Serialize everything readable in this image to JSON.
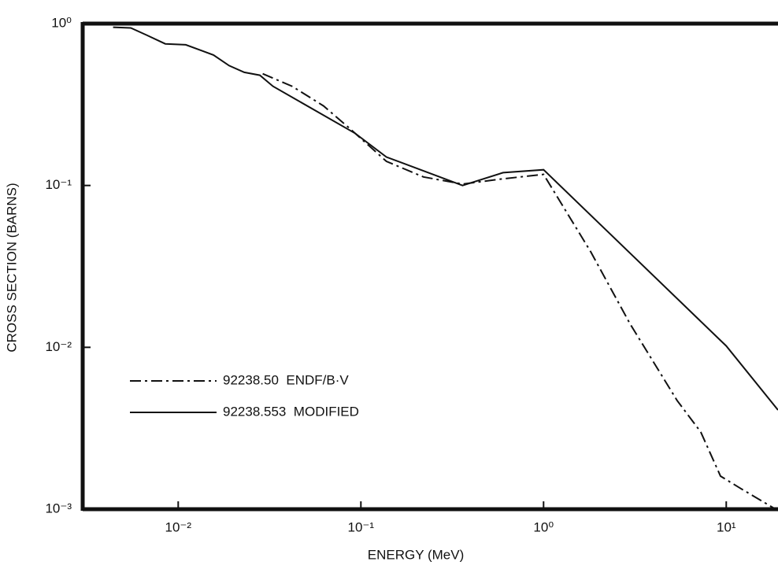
{
  "chart_data": {
    "type": "line",
    "log_x": true,
    "log_y": true,
    "x_label": "ENERGY (MeV)",
    "y_label": "CROSS SECTION (BARNS)",
    "xlim": [
      0.003,
      19.2
    ],
    "ylim": [
      0.001,
      1
    ],
    "xticks": [
      {
        "value": 0.01,
        "label": "10⁻²"
      },
      {
        "value": 0.1,
        "label": "10⁻¹"
      },
      {
        "value": 1,
        "label": "10⁰"
      },
      {
        "value": 10,
        "label": "10¹"
      }
    ],
    "yticks": [
      {
        "value": 0.001,
        "label": "10⁻³"
      },
      {
        "value": 0.01,
        "label": "10⁻²"
      },
      {
        "value": 0.1,
        "label": "10⁻¹"
      },
      {
        "value": 1,
        "label": "10⁰"
      }
    ],
    "legend": "lower left",
    "series": [
      {
        "name": "92238.50  ENDF/B·V",
        "color": "#111111",
        "linestyle": "dashdot",
        "x": [
          0.029,
          0.042,
          0.0625,
          0.085,
          0.138,
          0.22,
          0.36,
          0.6,
          1.0,
          1.81,
          2.97,
          5.38,
          7.25,
          9.3,
          11.9,
          19.2
        ],
        "values": [
          0.49,
          0.41,
          0.31,
          0.23,
          0.141,
          0.113,
          0.102,
          0.11,
          0.117,
          0.039,
          0.014,
          0.0047,
          0.003,
          0.0016,
          0.00135,
          0.00098
        ]
      },
      {
        "name": "92238.553  MODIFIED",
        "color": "#111111",
        "linestyle": "solid",
        "x": [
          0.0044,
          0.0055,
          0.0067,
          0.0085,
          0.011,
          0.0156,
          0.019,
          0.023,
          0.028,
          0.033,
          0.093,
          0.138,
          0.36,
          0.6,
          1.0,
          10,
          19.2
        ],
        "values": [
          0.95,
          0.94,
          0.85,
          0.75,
          0.74,
          0.64,
          0.55,
          0.5,
          0.48,
          0.41,
          0.21,
          0.15,
          0.1,
          0.12,
          0.125,
          0.0102,
          0.0041
        ]
      }
    ]
  }
}
